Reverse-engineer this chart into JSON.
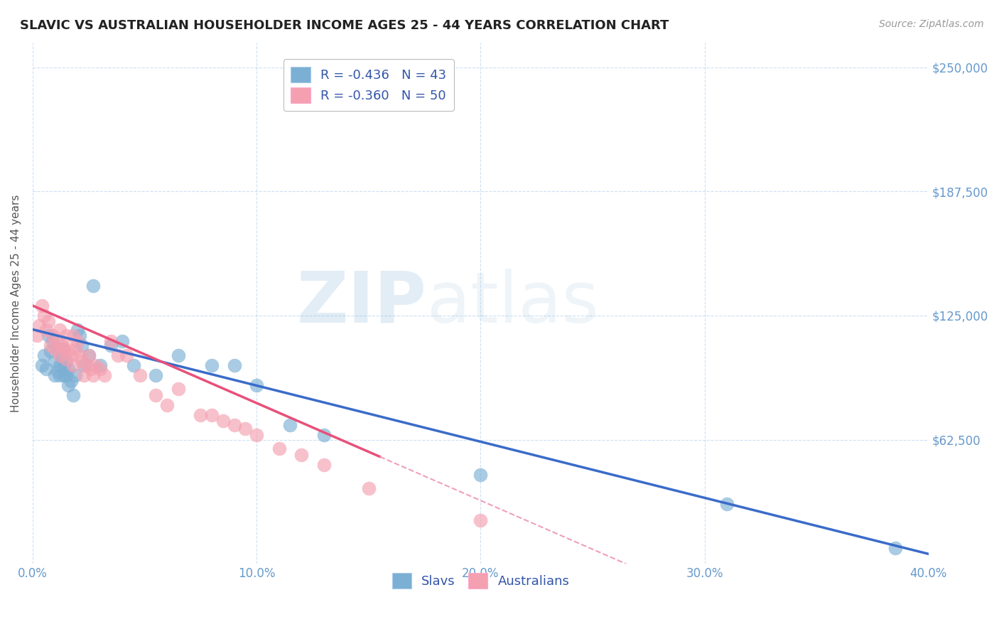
{
  "title": "SLAVIC VS AUSTRALIAN HOUSEHOLDER INCOME AGES 25 - 44 YEARS CORRELATION CHART",
  "source": "Source: ZipAtlas.com",
  "ylabel": "Householder Income Ages 25 - 44 years",
  "xlim": [
    0.0,
    0.4
  ],
  "ylim": [
    0,
    262500
  ],
  "xtick_labels": [
    "0.0%",
    "10.0%",
    "20.0%",
    "30.0%",
    "40.0%"
  ],
  "xtick_values": [
    0.0,
    0.1,
    0.2,
    0.3,
    0.4
  ],
  "ytick_labels": [
    "$62,500",
    "$125,000",
    "$187,500",
    "$250,000"
  ],
  "ytick_values": [
    62500,
    125000,
    187500,
    250000
  ],
  "legend_labels": [
    "R = -0.436   N = 43",
    "R = -0.360   N = 50"
  ],
  "legend_bottom_labels": [
    "Slavs",
    "Australians"
  ],
  "blue_color": "#7BAFD4",
  "pink_color": "#F4A0B0",
  "blue_line_color": "#3A6BC9",
  "pink_line_color": "#E8507A",
  "pink_dash_color": "#F0A0B8",
  "axis_color": "#6699CC",
  "title_color": "#333333",
  "slavs_x": [
    0.004,
    0.005,
    0.006,
    0.007,
    0.008,
    0.009,
    0.01,
    0.01,
    0.011,
    0.011,
    0.012,
    0.012,
    0.013,
    0.013,
    0.014,
    0.014,
    0.015,
    0.015,
    0.016,
    0.016,
    0.017,
    0.018,
    0.019,
    0.02,
    0.021,
    0.022,
    0.023,
    0.025,
    0.027,
    0.03,
    0.035,
    0.04,
    0.045,
    0.055,
    0.065,
    0.08,
    0.09,
    0.1,
    0.115,
    0.13,
    0.2,
    0.31,
    0.385
  ],
  "slavs_y": [
    100000,
    105000,
    98000,
    115000,
    107000,
    112000,
    102000,
    95000,
    108000,
    97000,
    100000,
    95000,
    108000,
    103000,
    98000,
    95000,
    102000,
    95000,
    98000,
    90000,
    92000,
    85000,
    95000,
    118000,
    115000,
    110000,
    100000,
    105000,
    140000,
    100000,
    110000,
    112000,
    100000,
    95000,
    105000,
    100000,
    100000,
    90000,
    70000,
    65000,
    45000,
    30000,
    8000
  ],
  "australians_x": [
    0.002,
    0.003,
    0.004,
    0.005,
    0.006,
    0.007,
    0.008,
    0.009,
    0.01,
    0.011,
    0.012,
    0.012,
    0.013,
    0.014,
    0.015,
    0.015,
    0.016,
    0.017,
    0.018,
    0.018,
    0.019,
    0.02,
    0.021,
    0.022,
    0.023,
    0.024,
    0.025,
    0.026,
    0.027,
    0.028,
    0.03,
    0.032,
    0.035,
    0.038,
    0.042,
    0.048,
    0.055,
    0.06,
    0.065,
    0.075,
    0.08,
    0.085,
    0.09,
    0.095,
    0.1,
    0.11,
    0.12,
    0.13,
    0.15,
    0.2
  ],
  "australians_y": [
    115000,
    120000,
    130000,
    125000,
    118000,
    122000,
    110000,
    115000,
    108000,
    112000,
    105000,
    118000,
    110000,
    108000,
    103000,
    115000,
    108000,
    105000,
    115000,
    100000,
    108000,
    112000,
    105000,
    102000,
    95000,
    100000,
    105000,
    98000,
    95000,
    100000,
    98000,
    95000,
    112000,
    105000,
    105000,
    95000,
    85000,
    80000,
    88000,
    75000,
    75000,
    72000,
    70000,
    68000,
    65000,
    58000,
    55000,
    50000,
    38000,
    22000
  ],
  "blue_line_x0": 0.0,
  "blue_line_y0": 118000,
  "blue_line_x1": 0.4,
  "blue_line_y1": 5000,
  "pink_line_x0": 0.0,
  "pink_line_y0": 130000,
  "pink_line_x1_solid": 0.155,
  "pink_line_x1_dash": 0.265,
  "pink_line_y1": 0
}
